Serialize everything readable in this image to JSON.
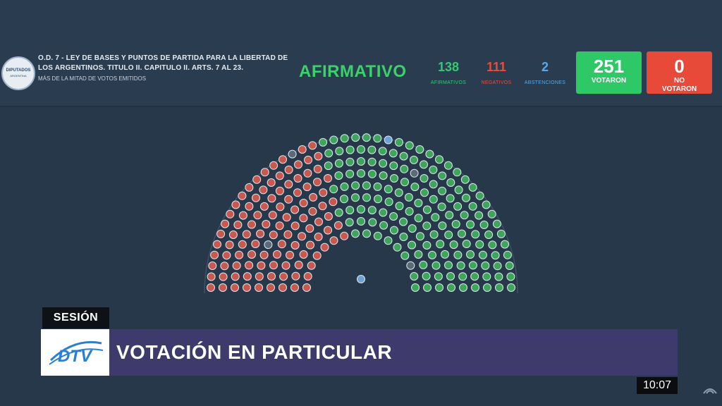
{
  "header": {
    "logo_line1": "DIPUTADOS",
    "logo_line2": "ARGENTINA",
    "title": "O.D. 7 - LEY DE BASES Y PUNTOS DE PARTIDA PARA LA LIBERTAD DE LOS ARGENTINOS. TITULO II. CAPITULO II. ARTS. 7 AL 23.",
    "subtitle": "MÁS DE LA MITAD DE VOTOS EMITIDOS",
    "result": "AFIRMATIVO",
    "stats": {
      "afirmativos": {
        "value": "138",
        "label": "AFIRMATIVOS",
        "color": "#2ecc71"
      },
      "negativos": {
        "value": "111",
        "label": "NEGATIVOS",
        "color": "#e74c3c"
      },
      "abstenciones": {
        "value": "2",
        "label": "ABSTENCIONES",
        "color": "#5aa9e6"
      }
    },
    "votaron": {
      "value": "251",
      "label": "VOTARON",
      "color": "#2ec866"
    },
    "no_votaron": {
      "value": "0",
      "label": "NO VOTARON",
      "color": "#e84a3a"
    }
  },
  "hemicycle": {
    "total_seats": 257,
    "afirmativo_color": "#3da65a",
    "negativo_color": "#c9584f",
    "no_voto_color": "#5d6b78",
    "abstencion_color": "#6fa3d8"
  },
  "lower_third": {
    "section_label": "SESIÓN",
    "channel_logo": "DTV",
    "banner_text": "VOTACIÓN EN PARTICULAR"
  },
  "clock": "10:07"
}
